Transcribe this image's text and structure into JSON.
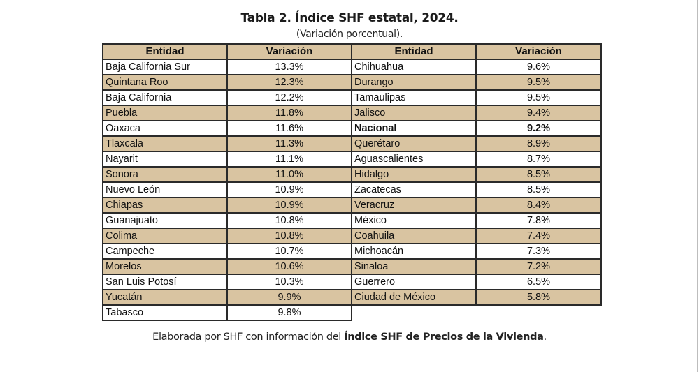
{
  "title": "Tabla 2. Índice SHF estatal, 2024.",
  "subtitle": "(Variación porcentual).",
  "headers": {
    "left_entity": "Entidad",
    "left_value": "Variación",
    "right_entity": "Entidad",
    "right_value": "Variación"
  },
  "colors": {
    "header_bg": "#d9c4a1",
    "stripe_bg": "#d9c4a1",
    "border": "#2a2a2a"
  },
  "left_rows": [
    {
      "entity": "Baja California Sur",
      "value": "13.3%"
    },
    {
      "entity": "Quintana Roo",
      "value": "12.3%"
    },
    {
      "entity": "Baja California",
      "value": "12.2%"
    },
    {
      "entity": "Puebla",
      "value": "11.8%"
    },
    {
      "entity": "Oaxaca",
      "value": "11.6%"
    },
    {
      "entity": "Tlaxcala",
      "value": "11.3%"
    },
    {
      "entity": "Nayarit",
      "value": "11.1%"
    },
    {
      "entity": "Sonora",
      "value": "11.0%"
    },
    {
      "entity": "Nuevo León",
      "value": "10.9%"
    },
    {
      "entity": "Chiapas",
      "value": "10.9%"
    },
    {
      "entity": "Guanajuato",
      "value": "10.8%"
    },
    {
      "entity": "Colima",
      "value": "10.8%"
    },
    {
      "entity": "Campeche",
      "value": "10.7%"
    },
    {
      "entity": "Morelos",
      "value": "10.6%"
    },
    {
      "entity": "San Luis Potosí",
      "value": "10.3%"
    },
    {
      "entity": "Yucatán",
      "value": "9.9%"
    },
    {
      "entity": "Tabasco",
      "value": "9.8%"
    }
  ],
  "right_rows": [
    {
      "entity": "Chihuahua",
      "value": "9.6%"
    },
    {
      "entity": "Durango",
      "value": "9.5%"
    },
    {
      "entity": "Tamaulipas",
      "value": "9.5%"
    },
    {
      "entity": "Jalisco",
      "value": "9.4%"
    },
    {
      "entity": "Nacional",
      "value": "9.2%",
      "bold": true
    },
    {
      "entity": "Querétaro",
      "value": "8.9%"
    },
    {
      "entity": "Aguascalientes",
      "value": "8.7%"
    },
    {
      "entity": "Hidalgo",
      "value": "8.5%"
    },
    {
      "entity": "Zacatecas",
      "value": "8.5%"
    },
    {
      "entity": "Veracruz",
      "value": "8.4%"
    },
    {
      "entity": "México",
      "value": "7.8%"
    },
    {
      "entity": "Coahuila",
      "value": "7.4%"
    },
    {
      "entity": "Michoacán",
      "value": "7.3%"
    },
    {
      "entity": "Sinaloa",
      "value": "7.2%"
    },
    {
      "entity": "Guerrero",
      "value": "6.5%"
    },
    {
      "entity": "Ciudad de México",
      "value": "5.8%"
    }
  ],
  "source": {
    "prefix": "Elaborada por SHF con información del ",
    "bold": "Índice SHF de Precios de la Vivienda",
    "suffix": "."
  }
}
